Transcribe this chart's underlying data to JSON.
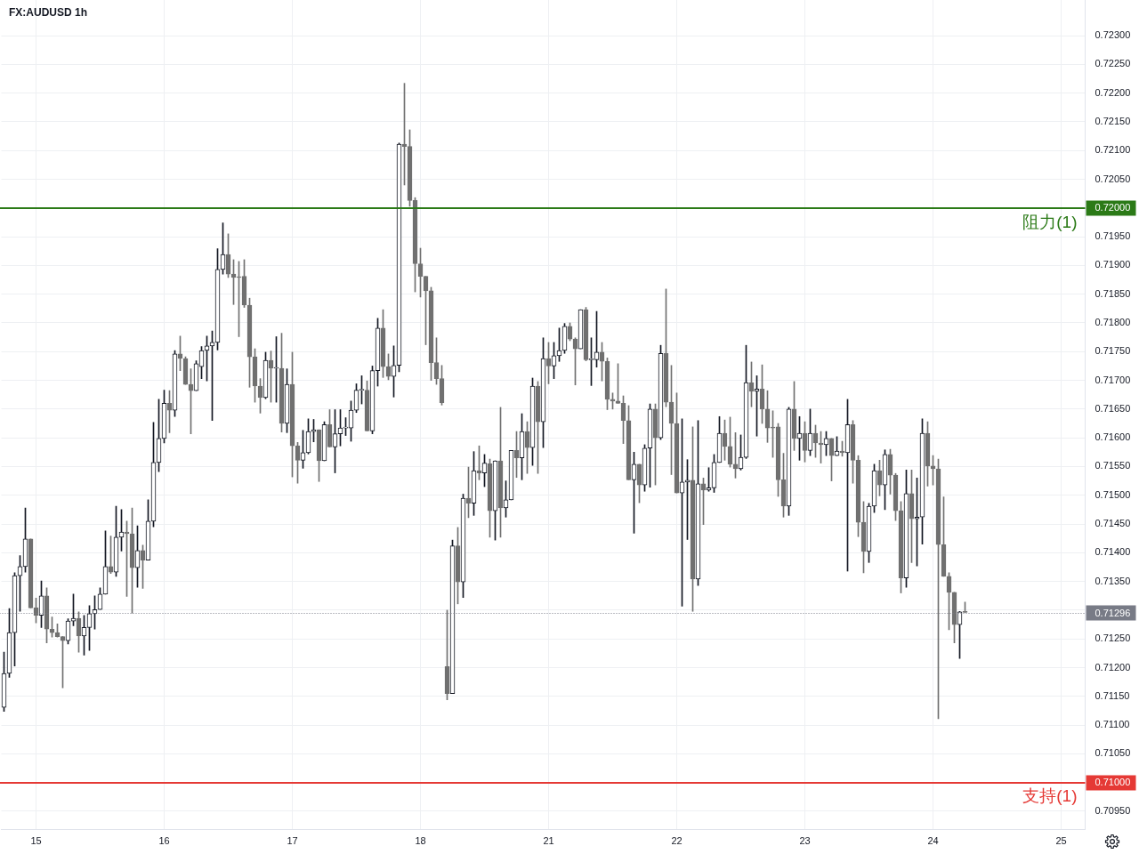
{
  "chart_data": {
    "type": "candlestick",
    "title": "FX:AUDUSD 1h",
    "categories": [
      null,
      null,
      null,
      null,
      null,
      null,
      "15",
      null,
      null,
      null,
      null,
      null,
      null,
      null,
      null,
      null,
      null,
      null,
      null,
      null,
      null,
      null,
      null,
      null,
      null,
      null,
      null,
      null,
      null,
      null,
      "16",
      null,
      null,
      null,
      null,
      null,
      null,
      null,
      null,
      null,
      null,
      null,
      null,
      null,
      null,
      null,
      null,
      null,
      null,
      null,
      null,
      null,
      null,
      null,
      "17",
      null,
      null,
      null,
      null,
      null,
      null,
      null,
      null,
      null,
      null,
      null,
      null,
      null,
      null,
      null,
      null,
      null,
      null,
      null,
      null,
      null,
      null,
      null,
      "18",
      null,
      null,
      null,
      null,
      null,
      null,
      null,
      null,
      null,
      null,
      null,
      null,
      null,
      null,
      null,
      null,
      null,
      null,
      null,
      null,
      null,
      null,
      null,
      "21",
      null,
      null,
      null,
      null,
      null,
      null,
      null,
      null,
      null,
      null,
      null,
      null,
      null,
      null,
      null,
      null,
      null,
      null,
      null,
      null,
      null,
      null,
      null,
      "22",
      null,
      null,
      null,
      null,
      null,
      null,
      null,
      null,
      null,
      null,
      null,
      null,
      null,
      null,
      null,
      null,
      null,
      null,
      null,
      null,
      null,
      null,
      null,
      "23",
      null,
      null,
      null,
      null,
      null,
      null,
      null,
      null,
      null,
      null,
      null,
      null,
      null,
      null,
      null,
      null,
      null,
      null,
      null,
      null,
      null,
      null,
      null,
      "24",
      null,
      null,
      null,
      null,
      null,
      null,
      null,
      null,
      null,
      null,
      null,
      null,
      null,
      null,
      null,
      null,
      null,
      null,
      null,
      null,
      null,
      null,
      null,
      "25",
      null,
      null,
      null,
      null
    ],
    "ohlc": [
      [
        0.71131,
        0.71227,
        0.71124,
        0.7119
      ],
      [
        0.7119,
        0.71303,
        0.71183,
        0.71261
      ],
      [
        0.71261,
        0.71365,
        0.71203,
        0.7136
      ],
      [
        0.7136,
        0.71395,
        0.71298,
        0.71376
      ],
      [
        0.71376,
        0.71478,
        0.71366,
        0.71424
      ],
      [
        0.71424,
        0.71424,
        0.71304,
        0.71304
      ],
      [
        0.71304,
        0.71321,
        0.71278,
        0.71291
      ],
      [
        0.71291,
        0.71351,
        0.7127,
        0.71325
      ],
      [
        0.71325,
        0.71339,
        0.71243,
        0.71267
      ],
      [
        0.71267,
        0.71288,
        0.71253,
        0.71261
      ],
      [
        0.71261,
        0.71276,
        0.71253,
        0.71254
      ],
      [
        0.71254,
        0.71254,
        0.71165,
        0.71247
      ],
      [
        0.71247,
        0.71285,
        0.71241,
        0.71281
      ],
      [
        0.71281,
        0.71328,
        0.71273,
        0.71286
      ],
      [
        0.71286,
        0.71297,
        0.71227,
        0.71255
      ],
      [
        0.71255,
        0.71291,
        0.71222,
        0.7127
      ],
      [
        0.7127,
        0.71308,
        0.7123,
        0.71294
      ],
      [
        0.71294,
        0.71325,
        0.71267,
        0.71301
      ],
      [
        0.71301,
        0.71339,
        0.71301,
        0.71328
      ],
      [
        0.71328,
        0.71438,
        0.71328,
        0.71376
      ],
      [
        0.71376,
        0.71429,
        0.71364,
        0.71366
      ],
      [
        0.71366,
        0.71481,
        0.71359,
        0.71427
      ],
      [
        0.71427,
        0.71475,
        0.71403,
        0.71436
      ],
      [
        0.71436,
        0.71455,
        0.71324,
        0.71433
      ],
      [
        0.71433,
        0.71478,
        0.71295,
        0.71374
      ],
      [
        0.71374,
        0.71447,
        0.7134,
        0.71404
      ],
      [
        0.71404,
        0.71413,
        0.71338,
        0.71387
      ],
      [
        0.71387,
        0.71492,
        0.71387,
        0.71455
      ],
      [
        0.71455,
        0.71627,
        0.71445,
        0.71557
      ],
      [
        0.71557,
        0.71667,
        0.71541,
        0.71599
      ],
      [
        0.71599,
        0.71683,
        0.71591,
        0.7166
      ],
      [
        0.7166,
        0.71682,
        0.71609,
        0.71648
      ],
      [
        0.71648,
        0.71752,
        0.71637,
        0.71746
      ],
      [
        0.71746,
        0.71777,
        0.71717,
        0.71738
      ],
      [
        0.71738,
        0.71741,
        0.71693,
        0.71693
      ],
      [
        0.71693,
        0.7172,
        0.71607,
        0.71682
      ],
      [
        0.71682,
        0.71734,
        0.71682,
        0.71729
      ],
      [
        0.71724,
        0.71759,
        0.71703,
        0.71752
      ],
      [
        0.71752,
        0.71777,
        0.71699,
        0.7176
      ],
      [
        0.7176,
        0.71786,
        0.7163,
        0.71766
      ],
      [
        0.71766,
        0.71929,
        0.71753,
        0.71893
      ],
      [
        0.71893,
        0.71974,
        0.71885,
        0.71919
      ],
      [
        0.71919,
        0.71955,
        0.71879,
        0.71885
      ],
      [
        0.71885,
        0.7191,
        0.71832,
        0.71879
      ],
      [
        0.7188,
        0.71907,
        0.71776,
        0.71879
      ],
      [
        0.71881,
        0.7191,
        0.71827,
        0.71831
      ],
      [
        0.71831,
        0.71843,
        0.71688,
        0.71741
      ],
      [
        0.71741,
        0.71755,
        0.71662,
        0.7169
      ],
      [
        0.7169,
        0.71703,
        0.71643,
        0.7167
      ],
      [
        0.7167,
        0.71749,
        0.71668,
        0.71735
      ],
      [
        0.71735,
        0.71751,
        0.71662,
        0.71721
      ],
      [
        0.71721,
        0.71776,
        0.71662,
        0.71721
      ],
      [
        0.71721,
        0.71782,
        0.7161,
        0.71625
      ],
      [
        0.71625,
        0.7172,
        0.71609,
        0.71693
      ],
      [
        0.71693,
        0.71749,
        0.71532,
        0.71586
      ],
      [
        0.71586,
        0.71592,
        0.71521,
        0.71561
      ],
      [
        0.71561,
        0.71613,
        0.71547,
        0.71574
      ],
      [
        0.71574,
        0.71633,
        0.71572,
        0.71611
      ],
      [
        0.71611,
        0.71632,
        0.71593,
        0.71614
      ],
      [
        0.71614,
        0.71614,
        0.71524,
        0.7156
      ],
      [
        0.7156,
        0.71628,
        0.7156,
        0.71623
      ],
      [
        0.71623,
        0.71649,
        0.71584,
        0.71584
      ],
      [
        0.71584,
        0.71649,
        0.71539,
        0.71607
      ],
      [
        0.71607,
        0.71649,
        0.71586,
        0.71617
      ],
      [
        0.71617,
        0.71635,
        0.71604,
        0.71617
      ],
      [
        0.71617,
        0.71664,
        0.71594,
        0.71648
      ],
      [
        0.71648,
        0.71694,
        0.71644,
        0.71683
      ],
      [
        0.71683,
        0.71708,
        0.71659,
        0.71683
      ],
      [
        0.71683,
        0.71699,
        0.71612,
        0.71612
      ],
      [
        0.71612,
        0.71725,
        0.71607,
        0.71717
      ],
      [
        0.71717,
        0.71808,
        0.7169,
        0.71791
      ],
      [
        0.71791,
        0.71823,
        0.71705,
        0.71724
      ],
      [
        0.71724,
        0.71746,
        0.71701,
        0.71707
      ],
      [
        0.71707,
        0.7176,
        0.71671,
        0.71726
      ],
      [
        0.71726,
        0.72113,
        0.71715,
        0.72111
      ],
      [
        0.72111,
        0.72217,
        0.7204,
        0.72107
      ],
      [
        0.72107,
        0.72136,
        0.72003,
        0.72013
      ],
      [
        0.72013,
        0.72018,
        0.71854,
        0.71903
      ],
      [
        0.71903,
        0.7193,
        0.71845,
        0.71881
      ],
      [
        0.71881,
        0.71881,
        0.71762,
        0.71856
      ],
      [
        0.71856,
        0.71862,
        0.717,
        0.71731
      ],
      [
        0.71731,
        0.71774,
        0.71693,
        0.71703
      ],
      [
        0.71703,
        0.71726,
        0.71657,
        0.71661
      ],
      [
        0.71202,
        0.713,
        0.71144,
        0.71155
      ],
      [
        0.71155,
        0.71422,
        0.71155,
        0.71412
      ],
      [
        0.71412,
        0.71444,
        0.71311,
        0.71349
      ],
      [
        0.71349,
        0.71502,
        0.71322,
        0.71495
      ],
      [
        0.71495,
        0.71549,
        0.71461,
        0.71486
      ],
      [
        0.71486,
        0.71576,
        0.71465,
        0.71543
      ],
      [
        0.71543,
        0.71586,
        0.71527,
        0.71539
      ],
      [
        0.71539,
        0.71571,
        0.71515,
        0.71556
      ],
      [
        0.71555,
        0.71563,
        0.71427,
        0.71473
      ],
      [
        0.71473,
        0.7156,
        0.71422,
        0.7156
      ],
      [
        0.7156,
        0.71653,
        0.71427,
        0.71478
      ],
      [
        0.71478,
        0.71525,
        0.71462,
        0.71492
      ],
      [
        0.71492,
        0.71578,
        0.71492,
        0.71578
      ],
      [
        0.71578,
        0.71611,
        0.71531,
        0.71565
      ],
      [
        0.71565,
        0.71642,
        0.71527,
        0.71611
      ],
      [
        0.71611,
        0.71628,
        0.71538,
        0.71583
      ],
      [
        0.71583,
        0.71704,
        0.71552,
        0.7169
      ],
      [
        0.7169,
        0.71698,
        0.71538,
        0.71628
      ],
      [
        0.71628,
        0.71774,
        0.71583,
        0.71738
      ],
      [
        0.71738,
        0.71766,
        0.71694,
        0.71725
      ],
      [
        0.71725,
        0.71766,
        0.71703,
        0.71743
      ],
      [
        0.71743,
        0.71791,
        0.71733,
        0.71752
      ],
      [
        0.71752,
        0.71799,
        0.71747,
        0.71794
      ],
      [
        0.71794,
        0.718,
        0.71769,
        0.71772
      ],
      [
        0.71772,
        0.71774,
        0.71692,
        0.71755
      ],
      [
        0.71755,
        0.71823,
        0.71755,
        0.71823
      ],
      [
        0.71823,
        0.71827,
        0.71734,
        0.71736
      ],
      [
        0.71736,
        0.71774,
        0.71691,
        0.71736
      ],
      [
        0.71736,
        0.7182,
        0.71723,
        0.71749
      ],
      [
        0.71749,
        0.71766,
        0.71699,
        0.71733
      ],
      [
        0.71733,
        0.71739,
        0.71649,
        0.71667
      ],
      [
        0.71667,
        0.71678,
        0.7165,
        0.71664
      ],
      [
        0.71664,
        0.71729,
        0.7166,
        0.7166
      ],
      [
        0.7166,
        0.71673,
        0.7159,
        0.7163
      ],
      [
        0.7163,
        0.71656,
        0.71527,
        0.71527
      ],
      [
        0.71527,
        0.71575,
        0.71434,
        0.71554
      ],
      [
        0.71554,
        0.71554,
        0.71487,
        0.71518
      ],
      [
        0.71518,
        0.71588,
        0.71507,
        0.71582
      ],
      [
        0.71582,
        0.71659,
        0.71514,
        0.7165
      ],
      [
        0.7165,
        0.71659,
        0.71518,
        0.716
      ],
      [
        0.716,
        0.71761,
        0.71597,
        0.71747
      ],
      [
        0.71747,
        0.71859,
        0.71654,
        0.71662
      ],
      [
        0.71662,
        0.71726,
        0.71536,
        0.71625
      ],
      [
        0.71625,
        0.71678,
        0.71504,
        0.71504
      ],
      [
        0.71504,
        0.71633,
        0.71307,
        0.71523
      ],
      [
        0.71523,
        0.71562,
        0.71423,
        0.71526
      ],
      [
        0.71526,
        0.71619,
        0.71298,
        0.71354
      ],
      [
        0.71354,
        0.7163,
        0.71343,
        0.7152
      ],
      [
        0.7152,
        0.7153,
        0.71449,
        0.71509
      ],
      [
        0.71509,
        0.71548,
        0.71507,
        0.71513
      ],
      [
        0.71513,
        0.71571,
        0.71505,
        0.71557
      ],
      [
        0.71557,
        0.71637,
        0.71557,
        0.71608
      ],
      [
        0.71608,
        0.71631,
        0.71561,
        0.71585
      ],
      [
        0.71585,
        0.71636,
        0.71549,
        0.71554
      ],
      [
        0.71554,
        0.71609,
        0.7153,
        0.71546
      ],
      [
        0.71546,
        0.71605,
        0.71544,
        0.71566
      ],
      [
        0.71566,
        0.71761,
        0.71564,
        0.71696
      ],
      [
        0.71696,
        0.71732,
        0.71654,
        0.71681
      ],
      [
        0.71681,
        0.71708,
        0.71603,
        0.71685
      ],
      [
        0.71685,
        0.71727,
        0.71625,
        0.7165
      ],
      [
        0.7165,
        0.71682,
        0.71592,
        0.71617
      ],
      [
        0.71618,
        0.71647,
        0.71566,
        0.71617
      ],
      [
        0.71619,
        0.71625,
        0.71498,
        0.71527
      ],
      [
        0.71527,
        0.71573,
        0.71462,
        0.71481
      ],
      [
        0.71481,
        0.71653,
        0.71465,
        0.7165
      ],
      [
        0.7165,
        0.71698,
        0.71578,
        0.71599
      ],
      [
        0.71599,
        0.71637,
        0.71561,
        0.71608
      ],
      [
        0.71608,
        0.71628,
        0.71558,
        0.71578
      ],
      [
        0.71578,
        0.7165,
        0.71569,
        0.71608
      ],
      [
        0.71608,
        0.71622,
        0.71566,
        0.71591
      ],
      [
        0.71591,
        0.71611,
        0.71556,
        0.71588
      ],
      [
        0.71588,
        0.71611,
        0.71569,
        0.71599
      ],
      [
        0.71599,
        0.71599,
        0.71525,
        0.71569
      ],
      [
        0.71569,
        0.71602,
        0.71569,
        0.71577
      ],
      [
        0.71577,
        0.71594,
        0.71568,
        0.71574
      ],
      [
        0.71574,
        0.71667,
        0.71368,
        0.71623
      ],
      [
        0.71623,
        0.7163,
        0.71521,
        0.71561
      ],
      [
        0.71561,
        0.71569,
        0.71428,
        0.71453
      ],
      [
        0.71453,
        0.71489,
        0.71365,
        0.71402
      ],
      [
        0.71402,
        0.71486,
        0.71383,
        0.71481
      ],
      [
        0.71481,
        0.71554,
        0.7147,
        0.71543
      ],
      [
        0.71543,
        0.71561,
        0.71499,
        0.71518
      ],
      [
        0.71518,
        0.71579,
        0.71475,
        0.71571
      ],
      [
        0.71571,
        0.7158,
        0.71502,
        0.71535
      ],
      [
        0.71535,
        0.71538,
        0.71456,
        0.71473
      ],
      [
        0.71473,
        0.71489,
        0.7133,
        0.71356
      ],
      [
        0.71356,
        0.71544,
        0.7134,
        0.71503
      ],
      [
        0.71503,
        0.71544,
        0.71383,
        0.71459
      ],
      [
        0.71459,
        0.7153,
        0.71377,
        0.71462
      ],
      [
        0.71462,
        0.71633,
        0.71415,
        0.71608
      ],
      [
        0.71608,
        0.71628,
        0.71516,
        0.71551
      ],
      [
        0.71551,
        0.71569,
        0.71518,
        0.71546
      ],
      [
        0.71546,
        0.71563,
        0.71111,
        0.71414
      ],
      [
        0.71414,
        0.71497,
        0.71359,
        0.71359
      ],
      [
        0.71359,
        0.71365,
        0.71266,
        0.71331
      ],
      [
        0.71331,
        0.71331,
        0.71243,
        0.71275
      ],
      [
        0.71275,
        0.71298,
        0.71216,
        0.71297
      ],
      [
        0.71298,
        0.71314,
        0.71296,
        0.71296
      ],
      null,
      null,
      null,
      null,
      null,
      null,
      null,
      null,
      null,
      null,
      null,
      null,
      null,
      null,
      null,
      null,
      null,
      null,
      null,
      null,
      null,
      null
    ],
    "colors": [
      "#131722",
      "#131722",
      "#131722",
      "#131722",
      "#131722",
      "#707070",
      "#707070",
      "#131722",
      "#707070",
      "#707070",
      "#707070",
      "#707070",
      "#131722",
      "#131722",
      "#707070",
      "#131722",
      "#131722",
      "#131722",
      "#131722",
      "#131722",
      "#707070",
      "#131722",
      "#131722",
      "#707070",
      "#707070",
      "#131722",
      "#707070",
      "#131722",
      "#131722",
      "#131722",
      "#131722",
      "#707070",
      "#131722",
      "#707070",
      "#707070",
      "#707070",
      "#131722",
      "#131722",
      "#131722",
      "#131722",
      "#131722",
      "#131722",
      "#707070",
      "#707070",
      "#707070",
      "#707070",
      "#707070",
      "#707070",
      "#707070",
      "#131722",
      "#707070",
      "#131722",
      "#707070",
      "#131722",
      "#707070",
      "#707070",
      "#131722",
      "#131722",
      "#131722",
      "#707070",
      "#131722",
      "#707070",
      "#131722",
      "#131722",
      "#131722",
      "#131722",
      "#131722",
      "#131722",
      "#707070",
      "#131722",
      "#131722",
      "#707070",
      "#707070",
      "#131722",
      "#131722",
      "#707070",
      "#707070",
      "#707070",
      "#707070",
      "#707070",
      "#707070",
      "#707070",
      "#707070",
      "#707070",
      "#131722",
      "#707070",
      "#131722",
      "#707070",
      "#131722",
      "#707070",
      "#131722",
      "#707070",
      "#131722",
      "#707070",
      "#131722",
      "#131722",
      "#707070",
      "#131722",
      "#707070",
      "#131722",
      "#707070",
      "#131722",
      "#707070",
      "#131722",
      "#131722",
      "#131722",
      "#707070",
      "#707070",
      "#131722",
      "#707070",
      "#131722",
      "#131722",
      "#707070",
      "#707070",
      "#707070",
      "#707070",
      "#707070",
      "#707070",
      "#131722",
      "#707070",
      "#131722",
      "#131722",
      "#707070",
      "#131722",
      "#707070",
      "#707070",
      "#707070",
      "#131722",
      "#131722",
      "#707070",
      "#131722",
      "#707070",
      "#131722",
      "#131722",
      "#131722",
      "#707070",
      "#707070",
      "#707070",
      "#131722",
      "#131722",
      "#707070",
      "#131722",
      "#707070",
      "#707070",
      "#707070",
      "#707070",
      "#707070",
      "#131722",
      "#707070",
      "#131722",
      "#707070",
      "#131722",
      "#707070",
      "#707070",
      "#131722",
      "#707070",
      "#131722",
      "#707070",
      "#131722",
      "#707070",
      "#707070",
      "#707070",
      "#131722",
      "#131722",
      "#707070",
      "#131722",
      "#707070",
      "#707070",
      "#707070",
      "#131722",
      "#707070",
      "#131722",
      "#131722",
      "#707070",
      "#707070",
      "#707070",
      "#707070",
      "#707070",
      "#707070",
      "#131722",
      "#707070",
      null,
      null,
      null,
      null,
      null,
      null,
      null,
      null,
      null,
      null,
      null,
      null,
      null,
      null,
      null,
      null,
      null,
      null,
      null,
      null,
      null,
      null
    ],
    "ylim": [
      0.70919,
      0.72362
    ],
    "yticks": [
      {
        "value": 0.7095,
        "label": "0.70950"
      },
      {
        "value": 0.71,
        "label": "0.71000"
      },
      {
        "value": 0.7105,
        "label": "0.71050"
      },
      {
        "value": 0.711,
        "label": "0.71100"
      },
      {
        "value": 0.7115,
        "label": "0.71150"
      },
      {
        "value": 0.712,
        "label": "0.71200"
      },
      {
        "value": 0.7125,
        "label": "0.71250"
      },
      {
        "value": 0.713,
        "label": null
      },
      {
        "value": 0.7135,
        "label": "0.71350"
      },
      {
        "value": 0.714,
        "label": "0.71400"
      },
      {
        "value": 0.7145,
        "label": "0.71450"
      },
      {
        "value": 0.715,
        "label": "0.71500"
      },
      {
        "value": 0.7155,
        "label": "0.71550"
      },
      {
        "value": 0.716,
        "label": "0.71600"
      },
      {
        "value": 0.7165,
        "label": "0.71650"
      },
      {
        "value": 0.717,
        "label": "0.71700"
      },
      {
        "value": 0.7175,
        "label": "0.71750"
      },
      {
        "value": 0.718,
        "label": "0.71800"
      },
      {
        "value": 0.7185,
        "label": "0.71850"
      },
      {
        "value": 0.719,
        "label": "0.71900"
      },
      {
        "value": 0.7195,
        "label": "0.71950"
      },
      {
        "value": 0.72,
        "label": "0.72000"
      },
      {
        "value": 0.7205,
        "label": "0.72050"
      },
      {
        "value": 0.721,
        "label": "0.72100"
      },
      {
        "value": 0.7215,
        "label": "0.72150"
      },
      {
        "value": 0.722,
        "label": "0.72200"
      },
      {
        "value": 0.7225,
        "label": "0.72250"
      },
      {
        "value": 0.723,
        "label": "0.72300"
      }
    ],
    "grid": true,
    "ref_lines": [
      {
        "axis": "y",
        "value": 0.72,
        "label": "阻力(1)",
        "color": "#2b7a17"
      },
      {
        "axis": "y",
        "value": 0.71,
        "label": "支持(1)",
        "color": "#e53935"
      },
      {
        "axis": "y",
        "value": 0.71296,
        "label": "0.71296",
        "color": "#787b86",
        "line_style": "dotted"
      }
    ]
  }
}
